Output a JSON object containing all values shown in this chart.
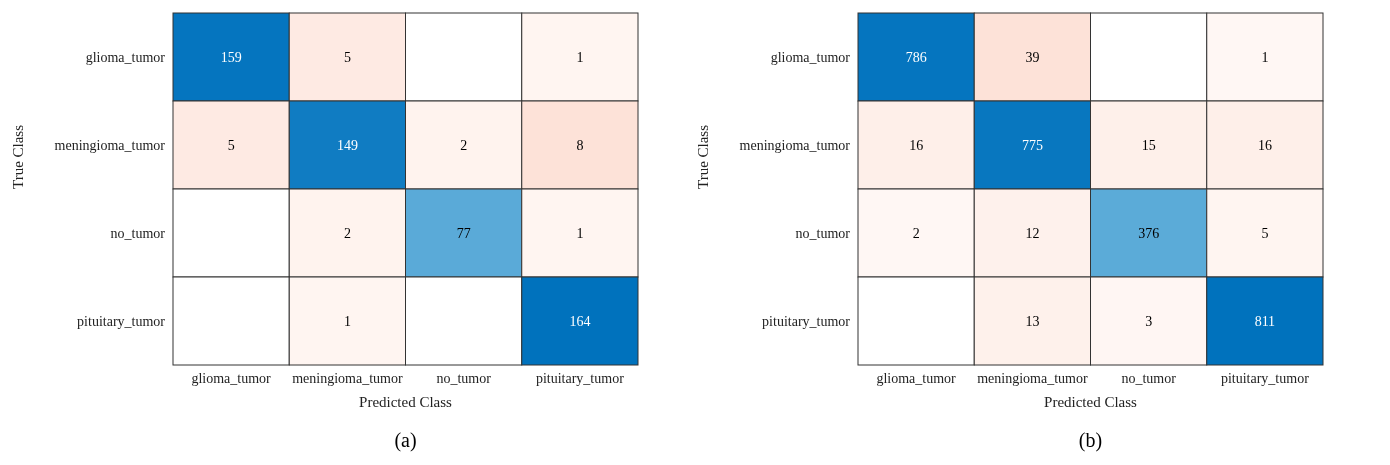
{
  "chart_data": [
    {
      "type": "heatmap",
      "xlabel": "Predicted Class",
      "ylabel": "True Class",
      "categories": [
        "glioma_tumor",
        "meningioma_tumor",
        "no_tumor",
        "pituitary_tumor"
      ],
      "y_categories": [
        "glioma_tumor",
        "meningioma_tumor",
        "no_tumor",
        "pituitary_tumor"
      ],
      "cells": [
        [
          159,
          5,
          null,
          1
        ],
        [
          5,
          149,
          2,
          8
        ],
        [
          null,
          2,
          77,
          1
        ],
        [
          null,
          1,
          null,
          164
        ]
      ],
      "data_labels": true,
      "annotations": [
        "(a)"
      ]
    },
    {
      "type": "heatmap",
      "xlabel": "Predicted Class",
      "ylabel": "True Class",
      "categories": [
        "glioma_tumor",
        "meningioma_tumor",
        "no_tumor",
        "pituitary_tumor"
      ],
      "y_categories": [
        "glioma_tumor",
        "meningioma_tumor",
        "no_tumor",
        "pituitary_tumor"
      ],
      "cells": [
        [
          786,
          39,
          null,
          1
        ],
        [
          16,
          775,
          15,
          16
        ],
        [
          2,
          12,
          376,
          5
        ],
        [
          null,
          13,
          3,
          811
        ]
      ],
      "data_labels": true,
      "annotations": [
        "(b)"
      ]
    }
  ]
}
